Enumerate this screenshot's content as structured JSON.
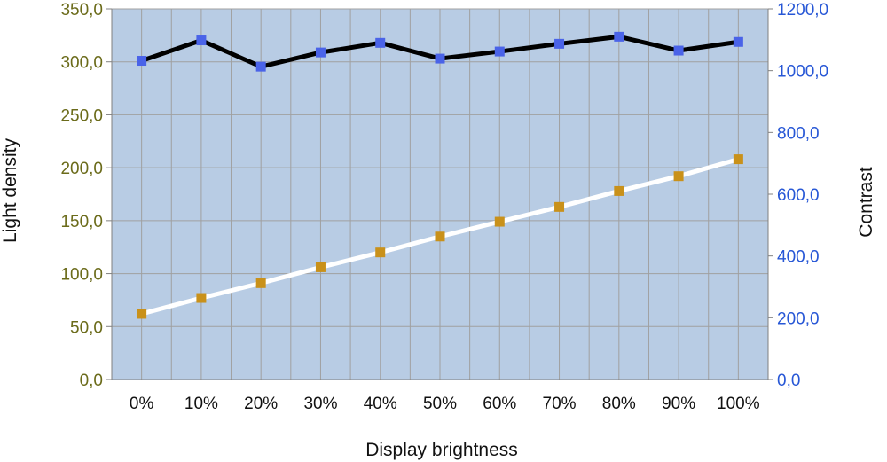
{
  "chart_data": {
    "type": "line",
    "categories": [
      "0%",
      "10%",
      "20%",
      "30%",
      "40%",
      "50%",
      "60%",
      "70%",
      "80%",
      "90%",
      "100%"
    ],
    "xlabel": "Display brightness",
    "ylabel": "Light density",
    "y2label": "Contrast",
    "ylim": [
      0,
      350
    ],
    "y2lim": [
      0,
      1200
    ],
    "yticks": [
      "0,0",
      "50,0",
      "100,0",
      "150,0",
      "200,0",
      "250,0",
      "300,0",
      "350,0"
    ],
    "y2ticks": [
      "0,0",
      "200,0",
      "400,0",
      "600,0",
      "800,0",
      "1000,0",
      "1200,0"
    ],
    "grid": true,
    "series": [
      {
        "axis": "left",
        "line_color": "#ffffff",
        "marker_color": "#c9911a",
        "values": [
          62,
          77,
          91,
          106,
          120,
          135,
          149,
          163,
          178,
          192,
          208
        ]
      },
      {
        "axis": "right",
        "line_color": "#000000",
        "marker_color": "#4a63e8",
        "values": [
          1032,
          1098,
          1013,
          1059,
          1090,
          1039,
          1062,
          1087,
          1110,
          1065,
          1093
        ]
      }
    ],
    "colors": {
      "plot_background": "#b8cce4",
      "grid": "#a0a0a0",
      "left_tick_text": "#6b6b1a",
      "right_tick_text": "#2757d6"
    }
  }
}
